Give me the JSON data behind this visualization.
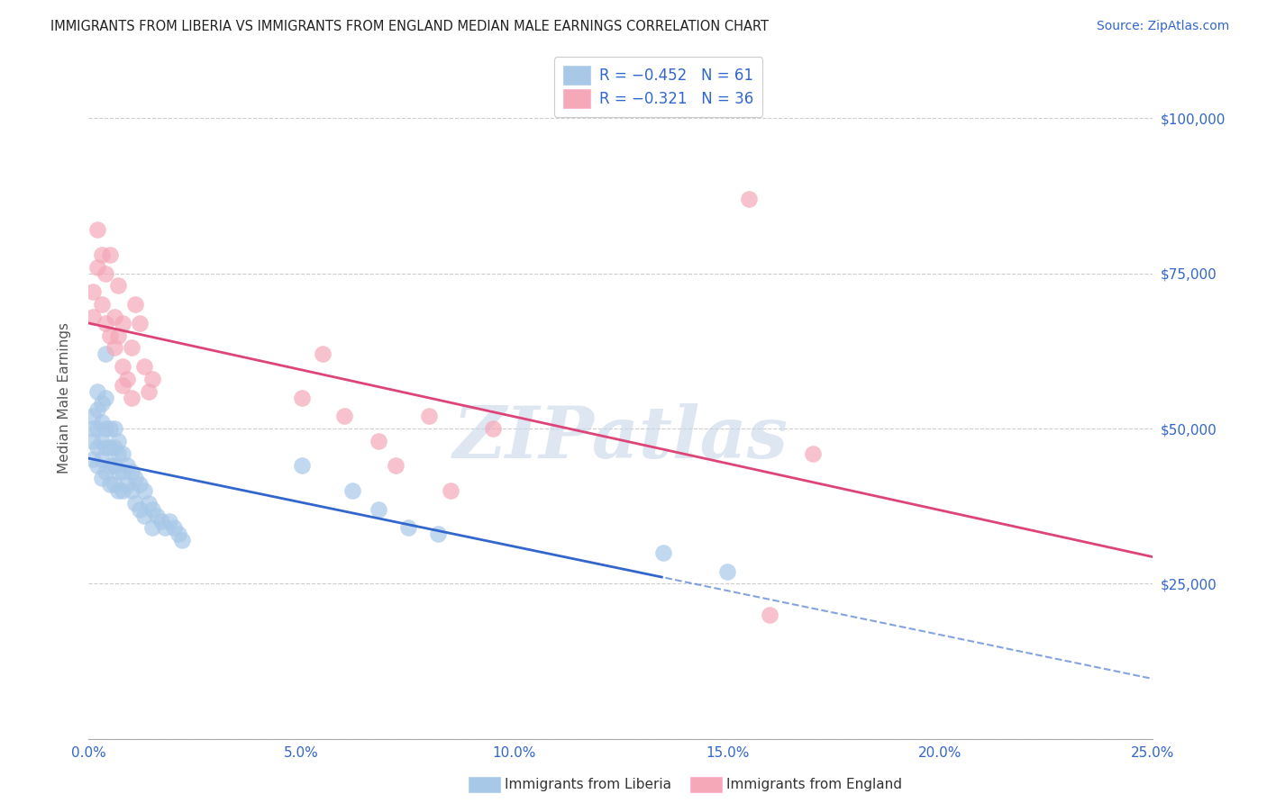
{
  "title": "IMMIGRANTS FROM LIBERIA VS IMMIGRANTS FROM ENGLAND MEDIAN MALE EARNINGS CORRELATION CHART",
  "source": "Source: ZipAtlas.com",
  "ylabel": "Median Male Earnings",
  "xlim": [
    0.0,
    0.25
  ],
  "ylim": [
    0,
    110000
  ],
  "yticks": [
    0,
    25000,
    50000,
    75000,
    100000
  ],
  "ytick_labels": [
    "",
    "$25,000",
    "$50,000",
    "$75,000",
    "$100,000"
  ],
  "xtick_vals": [
    0.0,
    0.05,
    0.1,
    0.15,
    0.2,
    0.25
  ],
  "xtick_labels": [
    "0.0%",
    "5.0%",
    "10.0%",
    "15.0%",
    "20.0%",
    "25.0%"
  ],
  "legend_labels": [
    "Immigrants from Liberia",
    "Immigrants from England"
  ],
  "blue_color": "#A8C8E8",
  "pink_color": "#F4A8B8",
  "blue_line_color": "#3366CC",
  "pink_line_color": "#DD4477",
  "axis_color": "#3366CC",
  "background_color": "#FFFFFF",
  "grid_color": "#CCCCCC",
  "watermark": "ZIPatlas",
  "watermark_color": "#C8D8E8",
  "liberia_x": [
    0.001,
    0.001,
    0.001,
    0.001,
    0.002,
    0.002,
    0.002,
    0.002,
    0.002,
    0.003,
    0.003,
    0.003,
    0.003,
    0.003,
    0.004,
    0.004,
    0.004,
    0.004,
    0.004,
    0.005,
    0.005,
    0.005,
    0.005,
    0.006,
    0.006,
    0.006,
    0.006,
    0.007,
    0.007,
    0.007,
    0.007,
    0.008,
    0.008,
    0.008,
    0.009,
    0.009,
    0.01,
    0.01,
    0.011,
    0.011,
    0.012,
    0.012,
    0.013,
    0.013,
    0.014,
    0.015,
    0.015,
    0.016,
    0.017,
    0.018,
    0.019,
    0.02,
    0.021,
    0.022,
    0.05,
    0.062,
    0.068,
    0.075,
    0.082,
    0.135,
    0.15
  ],
  "liberia_y": [
    52000,
    50000,
    48000,
    45000,
    56000,
    53000,
    50000,
    47000,
    44000,
    54000,
    51000,
    48000,
    45000,
    42000,
    62000,
    55000,
    50000,
    47000,
    43000,
    50000,
    47000,
    44000,
    41000,
    50000,
    47000,
    44000,
    41000,
    48000,
    46000,
    43000,
    40000,
    46000,
    43000,
    40000,
    44000,
    41000,
    43000,
    40000,
    42000,
    38000,
    41000,
    37000,
    40000,
    36000,
    38000,
    37000,
    34000,
    36000,
    35000,
    34000,
    35000,
    34000,
    33000,
    32000,
    44000,
    40000,
    37000,
    34000,
    33000,
    30000,
    27000
  ],
  "england_x": [
    0.001,
    0.001,
    0.002,
    0.002,
    0.003,
    0.003,
    0.004,
    0.004,
    0.005,
    0.005,
    0.006,
    0.006,
    0.007,
    0.007,
    0.008,
    0.008,
    0.009,
    0.01,
    0.011,
    0.012,
    0.013,
    0.014,
    0.015,
    0.05,
    0.055,
    0.06,
    0.068,
    0.072,
    0.08,
    0.085,
    0.095,
    0.155,
    0.16,
    0.17,
    0.01,
    0.008
  ],
  "england_y": [
    72000,
    68000,
    82000,
    76000,
    78000,
    70000,
    75000,
    67000,
    65000,
    78000,
    68000,
    63000,
    73000,
    65000,
    67000,
    60000,
    58000,
    63000,
    70000,
    67000,
    60000,
    56000,
    58000,
    55000,
    62000,
    52000,
    48000,
    44000,
    52000,
    40000,
    50000,
    87000,
    20000,
    46000,
    55000,
    57000
  ]
}
